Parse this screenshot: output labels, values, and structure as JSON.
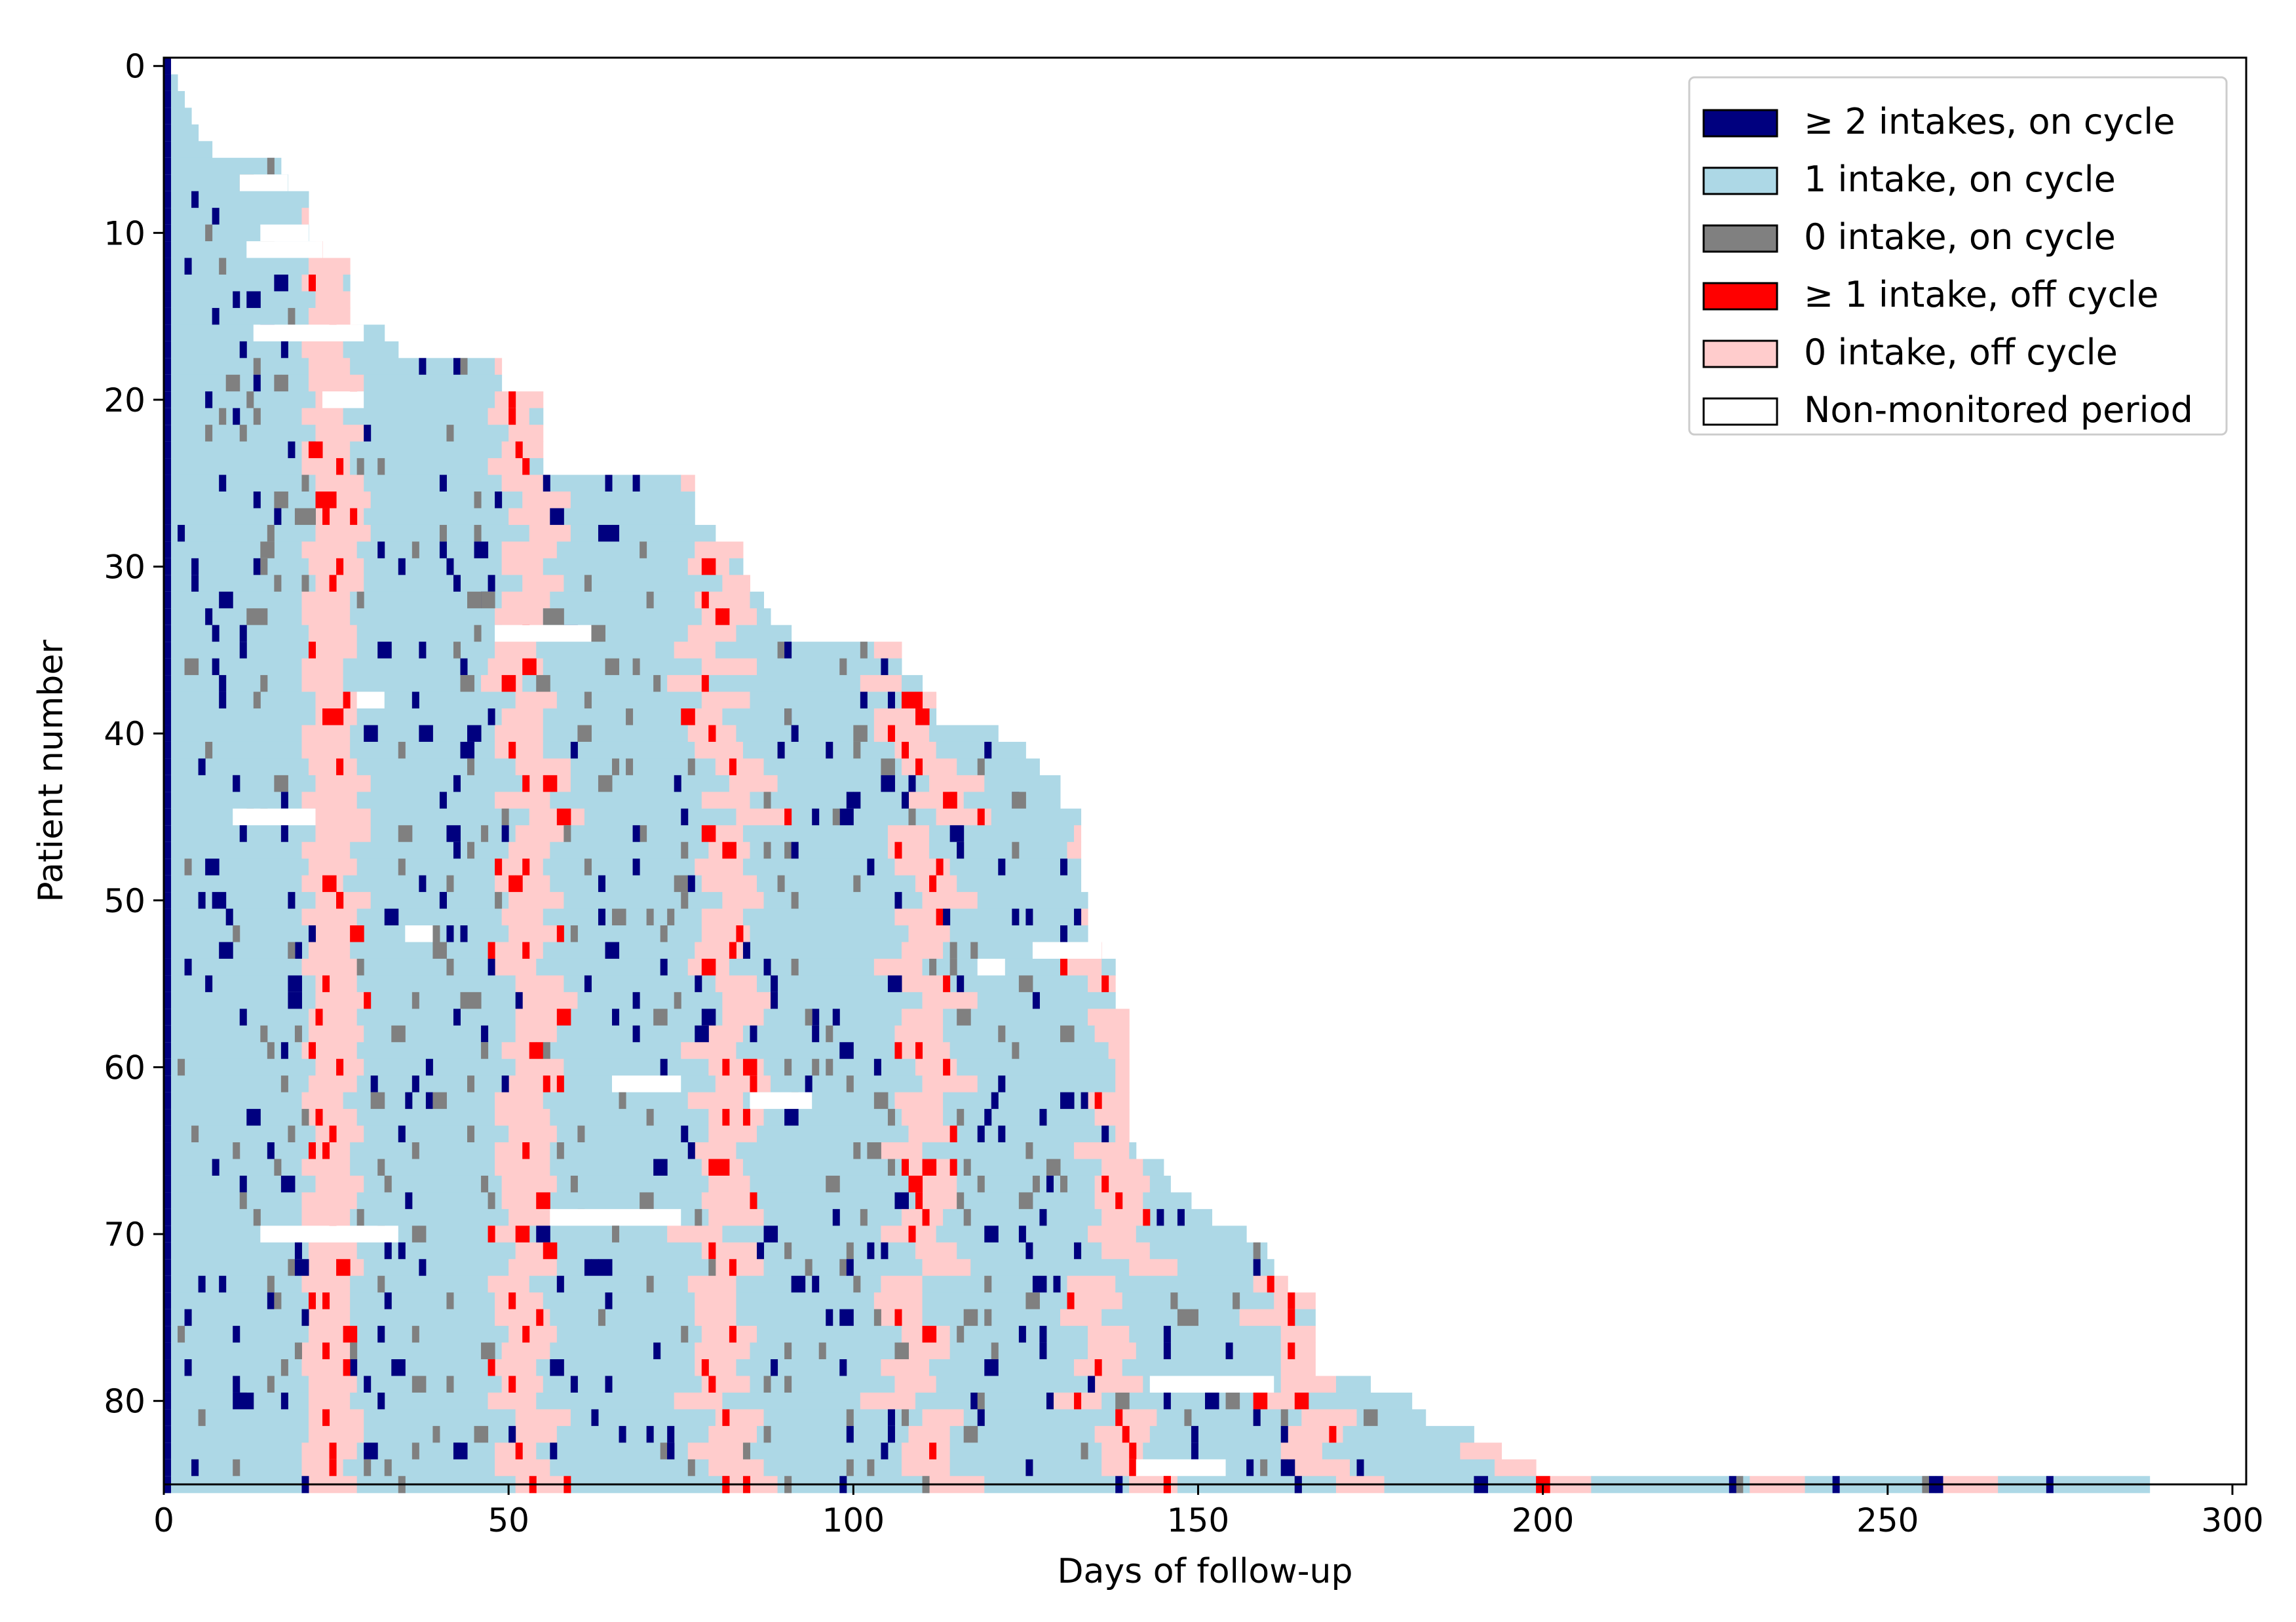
{
  "chart_data": {
    "type": "heatmap",
    "title": "",
    "xlabel": "Days of follow-up",
    "ylabel": "Patient number",
    "xlim": [
      0,
      302
    ],
    "ylim": [
      85,
      -0.5
    ],
    "x_ticks": [
      0,
      50,
      100,
      150,
      200,
      250,
      300
    ],
    "x_tick_labels": [
      "0",
      "50",
      "100",
      "150",
      "200",
      "250",
      "300"
    ],
    "y_ticks": [
      0,
      10,
      20,
      30,
      40,
      50,
      60,
      70,
      80
    ],
    "y_tick_labels": [
      "0",
      "10",
      "20",
      "30",
      "40",
      "50",
      "60",
      "70",
      "80"
    ],
    "legend_position": "top-right",
    "categories": [
      {
        "key": "multi_on",
        "label": "≥ 2 intakes, on cycle",
        "color": "#00007f"
      },
      {
        "key": "one_on",
        "label": "1 intake, on cycle",
        "color": "#add8e6"
      },
      {
        "key": "zero_on",
        "label": "0 intake, on cycle",
        "color": "#808080"
      },
      {
        "key": "one_off",
        "label": "≥ 1 intake, off cycle",
        "color": "#ff0000"
      },
      {
        "key": "zero_off",
        "label": "0 intake, off cycle",
        "color": "#ffcccc"
      },
      {
        "key": "non_mon",
        "label": "Non-monitored period",
        "color": "#ffffff"
      }
    ],
    "series_rule": "Each patient row i starts with a ≥2-intakes day at day 0, then alternates 1-intake on-cycle blocks and 0-intake off-cycle blocks (approx. 21 days on, 7 days off) until its follow-up length; sporadic 0-intake, ≥2-intake, ≥1-intake-off-cycle and non-monitored days are scattered through the rows.",
    "follow_up_days": [
      1,
      2,
      3,
      4,
      5,
      7,
      17,
      18,
      21,
      21,
      21,
      23,
      27,
      27,
      27,
      27,
      32,
      34,
      49,
      49,
      55,
      55,
      55,
      55,
      55,
      77,
      77,
      77,
      80,
      84,
      84,
      85,
      87,
      88,
      91,
      107,
      107,
      110,
      112,
      112,
      121,
      125,
      127,
      130,
      130,
      133,
      133,
      133,
      133,
      133,
      134,
      134,
      134,
      136,
      138,
      138,
      138,
      140,
      140,
      140,
      140,
      140,
      140,
      140,
      140,
      141,
      145,
      146,
      149,
      152,
      157,
      160,
      161,
      163,
      167,
      167,
      167,
      167,
      167,
      175,
      181,
      183,
      190,
      194,
      199,
      288
    ]
  }
}
